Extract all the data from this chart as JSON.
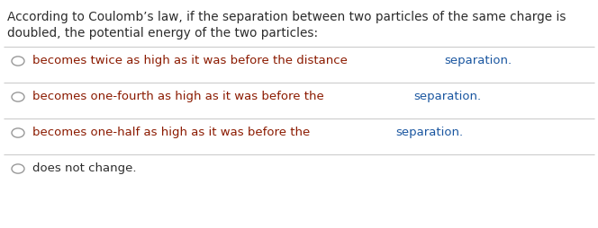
{
  "background_color": "#ffffff",
  "question_text_line1": "According to Coulomb’s law, if the separation between two particles of the same charge is",
  "question_text_line2": "doubled, the potential energy of the two particles:",
  "question_color": "#2c2c2c",
  "option_segments": [
    [
      [
        "becomes twice as high as it was before the distance ",
        "#8B1A00"
      ],
      [
        "separation.",
        "#1a56a0"
      ]
    ],
    [
      [
        "becomes one-fourth as high as it was before the ",
        "#8B1A00"
      ],
      [
        "separation.",
        "#1a56a0"
      ]
    ],
    [
      [
        "becomes one-half as high as it was before the ",
        "#8B1A00"
      ],
      [
        "separation.",
        "#1a56a0"
      ]
    ],
    [
      [
        "does not change.",
        "#2c2c2c"
      ]
    ]
  ],
  "circle_color": "#999999",
  "line_color": "#cccccc",
  "font_size": 9.5,
  "question_font_size": 9.8,
  "fig_width": 6.64,
  "fig_height": 2.54,
  "dpi": 100
}
